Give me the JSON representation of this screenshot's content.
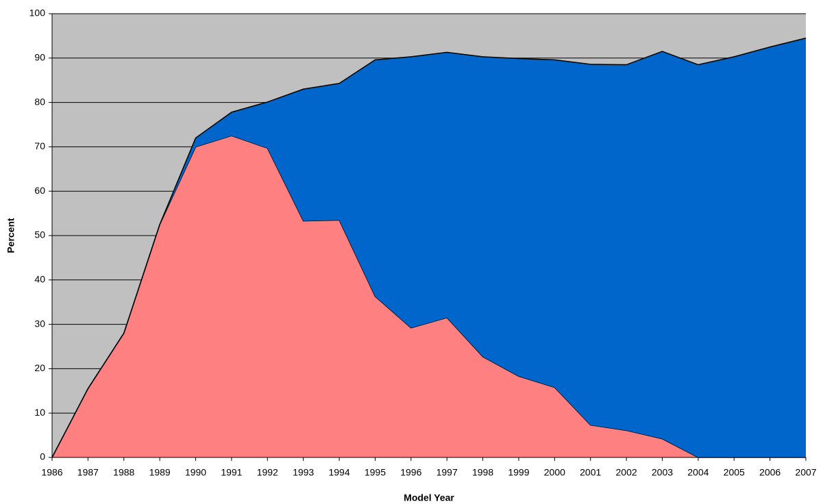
{
  "chart_data": {
    "type": "stacked-area",
    "x_label": "Model Year",
    "y_label": "Percent",
    "categories": [
      "1986",
      "1987",
      "1988",
      "1989",
      "1990",
      "1991",
      "1992",
      "1993",
      "1994",
      "1995",
      "1996",
      "1997",
      "1998",
      "1999",
      "2000",
      "2001",
      "2002",
      "2003",
      "2004",
      "2005",
      "2006",
      "2007"
    ],
    "series": [
      {
        "color": "#ff8080",
        "values": [
          0,
          15.5,
          28,
          52.5,
          70,
          72.5,
          69.7,
          53.3,
          53.5,
          36.3,
          29.2,
          31.5,
          22.7,
          18.3,
          15.8,
          7.3,
          6.1,
          4.2,
          0,
          0,
          0,
          0
        ]
      },
      {
        "color": "#0066cc",
        "values": [
          0,
          0,
          0,
          0,
          2,
          5.3,
          10.4,
          29.7,
          30.8,
          53.3,
          61.1,
          59.8,
          67.6,
          71.6,
          73.8,
          81.3,
          82.4,
          87.3,
          88.5,
          90.3,
          92.5,
          94.5
        ]
      }
    ],
    "ylim": [
      0,
      100
    ],
    "yticks": [
      0,
      10,
      20,
      30,
      40,
      50,
      60,
      70,
      80,
      90,
      100
    ],
    "grid": true,
    "background": "#c0c0c0"
  }
}
